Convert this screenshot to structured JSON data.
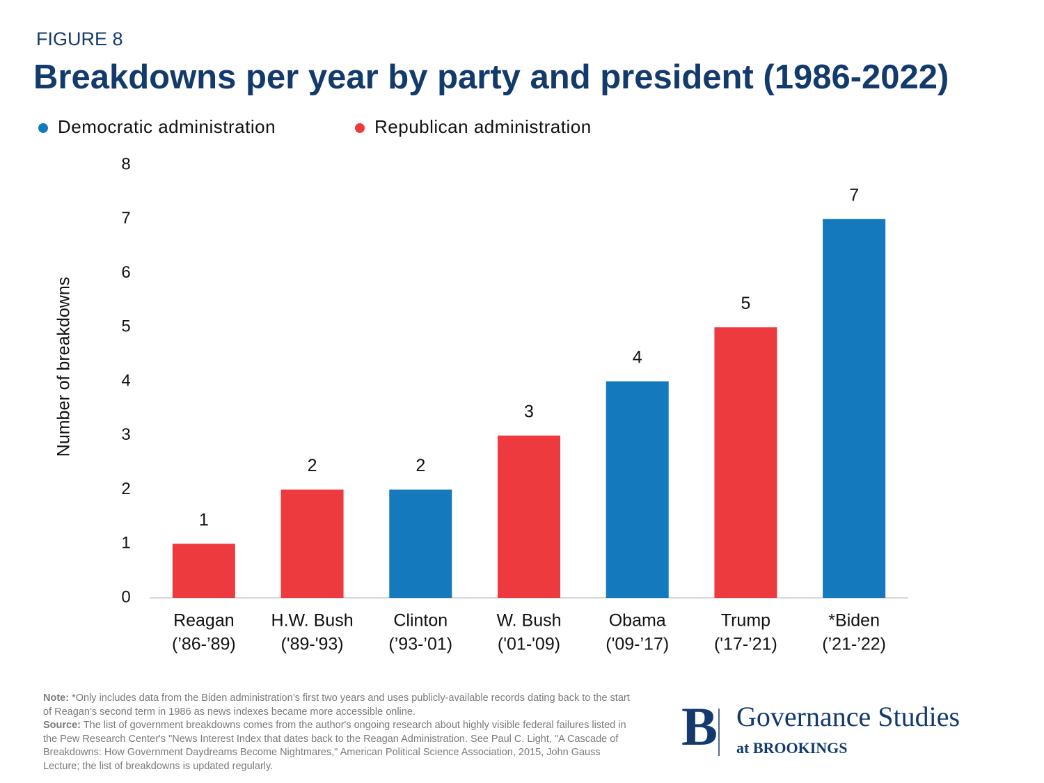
{
  "figure_label": "FIGURE 8",
  "chart_data": {
    "type": "bar",
    "title": "Breakdowns per year by party and president (1986-2022)",
    "y_label": "Number of breakdowns",
    "categories": [
      [
        "Reagan",
        "(’86-’89)"
      ],
      [
        "H.W. Bush",
        "('89-'93)"
      ],
      [
        "Clinton",
        "(’93-’01)"
      ],
      [
        "W. Bush",
        "('01-'09)"
      ],
      [
        "Obama",
        "('09-’17)"
      ],
      [
        "Trump",
        "('17-’21)"
      ],
      [
        "*Biden",
        "(’21-’22)"
      ]
    ],
    "series": [
      {
        "name": "Democratic administration",
        "color": "#1479bd",
        "values": [
          null,
          null,
          2,
          null,
          4,
          null,
          7
        ]
      },
      {
        "name": "Republican administration",
        "color": "#ec3a3f",
        "values": [
          1,
          2,
          null,
          3,
          null,
          5,
          null
        ]
      }
    ],
    "ylim": [
      0,
      8
    ],
    "yticks": [
      0,
      1,
      2,
      3,
      4,
      5,
      6,
      7,
      8
    ],
    "grid": false
  },
  "note": {
    "label": "Note:",
    "text": "*Only includes data from the Biden administration’s first two years and uses publicly-available records dating back to the start of Reagan’s second term in 1986 as news indexes became more accessible online."
  },
  "source": {
    "label": "Source:",
    "text": "The list of government breakdowns comes from the author's ongoing research about highly visible federal failures listed in the Pew Research Center's \"News Interest Index that dates back to the Reagan Administration. See Paul C. Light, \"A Cascade of Breakdowns: How Government Daydreams Become Nightmares,\" American Political Science Association, 2015, John Gauss Lecture; the list of breakdowns is updated regularly."
  },
  "logo": {
    "mark": "B",
    "name": "Governance Studies",
    "sub": "at BROOKINGS"
  }
}
